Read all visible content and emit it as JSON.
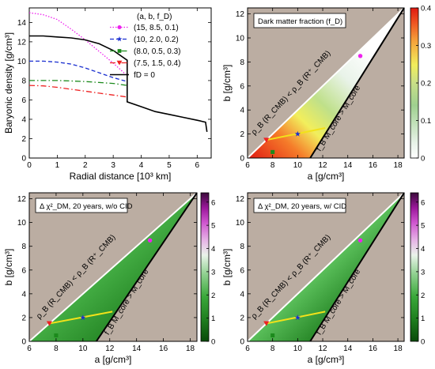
{
  "chart_data": [
    {
      "type": "line",
      "xlabel": "Radial distance [10³ km]",
      "ylabel": "Baryonic density [g/cm³]",
      "xlim": [
        0,
        6.5
      ],
      "ylim": [
        0,
        15.5
      ],
      "xticks": [
        "0",
        "1",
        "2",
        "3",
        "4",
        "5",
        "6"
      ],
      "yticks": [
        "0",
        "2",
        "4",
        "6",
        "8",
        "10",
        "12",
        "14"
      ],
      "legend_header": "(a,   b,   f_D)",
      "legend_position": "top-right",
      "series": [
        {
          "name": "(15,  8.5,  0.1)",
          "color": "#ee22ee",
          "style": "dotted",
          "marker": "circle",
          "x": [
            0,
            0.5,
            1.0,
            1.5,
            2.0,
            2.5,
            3.0,
            3.5
          ],
          "y": [
            15.0,
            14.8,
            14.3,
            13.3,
            12.2,
            11.0,
            9.8,
            8.5
          ]
        },
        {
          "name": "(10,  2.0,  0.2)",
          "color": "#1a2fd0",
          "style": "dashed",
          "marker": "star",
          "x": [
            0,
            0.5,
            1.0,
            1.5,
            2.0,
            2.5,
            3.0,
            3.5
          ],
          "y": [
            10.0,
            10.0,
            9.9,
            9.7,
            9.3,
            8.8,
            8.3,
            7.9
          ]
        },
        {
          "name": "(8.0,  0.5,  0.3)",
          "color": "#1c8a1c",
          "style": "dashdot",
          "marker": "square",
          "x": [
            0,
            0.5,
            1.0,
            1.5,
            2.0,
            2.5,
            3.0,
            3.5
          ],
          "y": [
            8.0,
            8.0,
            8.0,
            7.95,
            7.9,
            7.8,
            7.7,
            7.5
          ]
        },
        {
          "name": "(7.5,  1.5,  0.4)",
          "color": "#ee2222",
          "style": "dashdot",
          "marker": "triangle-down",
          "x": [
            0,
            0.5,
            1.0,
            1.5,
            2.0,
            2.5,
            3.0,
            3.5
          ],
          "y": [
            7.5,
            7.45,
            7.3,
            7.1,
            6.9,
            6.7,
            6.5,
            6.3
          ]
        },
        {
          "name": "f_D = 0",
          "color": "#000000",
          "style": "solid",
          "marker": "none",
          "x": [
            0,
            0.5,
            1.0,
            1.5,
            2.0,
            2.5,
            3.0,
            3.5,
            3.5,
            4.0,
            4.5,
            5.0,
            5.5,
            6.0,
            6.3,
            6.35
          ],
          "y": [
            12.6,
            12.6,
            12.5,
            12.4,
            12.2,
            11.8,
            11.1,
            10.1,
            5.8,
            5.3,
            4.8,
            4.5,
            4.2,
            3.9,
            3.7,
            2.7
          ]
        }
      ]
    },
    {
      "type": "heatmap",
      "xlabel": "a [g/cm³]",
      "ylabel": "b [g/cm³]",
      "xlim": [
        6,
        18.5
      ],
      "ylim": [
        0,
        12.5
      ],
      "xticks": [
        "6",
        "8",
        "10",
        "12",
        "14",
        "16",
        "18"
      ],
      "yticks": [
        "0",
        "2",
        "4",
        "6",
        "8",
        "10",
        "12"
      ],
      "label_box": "Dark matter fraction (f_D)",
      "annotation_upper": "ρ_B (R_CMB) < ρ_B (R⁺_CMB)",
      "annotation_lower": "f_B M_core > M_core",
      "colorbar": {
        "min": 0,
        "max": 0.4,
        "ticks": [
          "0",
          "0.1",
          "0.2",
          "0.3",
          "0.4"
        ],
        "colormap": "green-white-yellow-red"
      },
      "points": [
        {
          "a": 15,
          "b": 8.5,
          "marker": "circle",
          "color": "#ee22ee"
        },
        {
          "a": 10,
          "b": 2.0,
          "marker": "star",
          "color": "#1a2fd0"
        },
        {
          "a": 8.0,
          "b": 0.5,
          "marker": "square",
          "color": "#1c8a1c"
        },
        {
          "a": 7.5,
          "b": 1.5,
          "marker": "triangle-down",
          "color": "#ee2222"
        }
      ],
      "yellow_line": {
        "x": [
          7.5,
          12.2
        ],
        "y": [
          1.5,
          2.5
        ]
      }
    },
    {
      "type": "heatmap",
      "xlabel": "a [g/cm³]",
      "ylabel": "b [g/cm³]",
      "xlim": [
        6,
        18.5
      ],
      "ylim": [
        0,
        12.5
      ],
      "xticks": [
        "6",
        "8",
        "10",
        "12",
        "14",
        "16",
        "18"
      ],
      "yticks": [
        "0",
        "2",
        "4",
        "6",
        "8",
        "10",
        "12"
      ],
      "label_box": "Δ χ²_DM, 20 years, w/o CID",
      "annotation_upper": "ρ_B (R_CMB) < ρ_B (R⁺_CMB)",
      "annotation_lower": "f_B M_core > M_core",
      "colorbar": {
        "min": 0,
        "max": 6.4,
        "ticks": [
          "0",
          "1",
          "2",
          "3",
          "4",
          "5",
          "6"
        ],
        "colormap": "darkgreen-green-white-magenta-purple"
      },
      "points": [
        {
          "a": 15,
          "b": 8.5,
          "marker": "circle",
          "color": "#ee22ee"
        },
        {
          "a": 10,
          "b": 2.0,
          "marker": "star",
          "color": "#1a2fd0"
        },
        {
          "a": 8.0,
          "b": 0.5,
          "marker": "square",
          "color": "#1c8a1c"
        },
        {
          "a": 7.5,
          "b": 1.5,
          "marker": "triangle-down",
          "color": "#ee2222"
        }
      ],
      "yellow_line": {
        "x": [
          7.5,
          12.2
        ],
        "y": [
          1.5,
          2.5
        ]
      }
    },
    {
      "type": "heatmap",
      "xlabel": "a [g/cm³]",
      "ylabel": "b [g/cm³]",
      "xlim": [
        6,
        18.5
      ],
      "ylim": [
        0,
        12.5
      ],
      "xticks": [
        "6",
        "8",
        "10",
        "12",
        "14",
        "16",
        "18"
      ],
      "yticks": [
        "0",
        "2",
        "4",
        "6",
        "8",
        "10",
        "12"
      ],
      "label_box": "Δ χ²_DM, 20 years, w/ CID",
      "annotation_upper": "ρ_B (R_CMB) < ρ_B (R⁺_CMB)",
      "annotation_lower": "f_B M_core > M_core",
      "colorbar": {
        "min": 0,
        "max": 6.4,
        "ticks": [
          "0",
          "1",
          "2",
          "3",
          "4",
          "5",
          "6"
        ],
        "colormap": "darkgreen-green-white-magenta-purple"
      },
      "points": [
        {
          "a": 15,
          "b": 8.5,
          "marker": "circle",
          "color": "#ee22ee"
        },
        {
          "a": 10,
          "b": 2.0,
          "marker": "star",
          "color": "#1a2fd0"
        },
        {
          "a": 8.0,
          "b": 0.5,
          "marker": "square",
          "color": "#1c8a1c"
        },
        {
          "a": 7.5,
          "b": 1.5,
          "marker": "triangle-down",
          "color": "#ee2222"
        }
      ],
      "yellow_line": {
        "x": [
          7.5,
          12.2
        ],
        "y": [
          1.5,
          2.5
        ]
      }
    }
  ]
}
